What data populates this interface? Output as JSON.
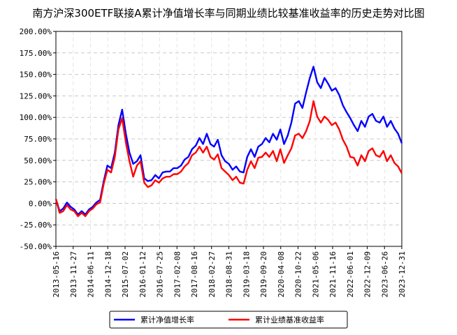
{
  "chart_data": {
    "type": "line",
    "title": "南方沪深300ETF联接A累计净值增长率与同期业绩比较基准收益率的历史走势对比图",
    "xlabel": "",
    "ylabel": "",
    "ylim": [
      -50,
      200
    ],
    "y_ticks": [
      "200.00%",
      "175.00%",
      "150.00%",
      "125.00%",
      "100.00%",
      "75.00%",
      "50.00%",
      "25.00%",
      "0.00%",
      "-25.00%",
      "-50.00%"
    ],
    "x_ticks": [
      "2013-05-16",
      "2013-11-27",
      "2014-06-11",
      "2014-12-18",
      "2015-07-02",
      "2016-01-12",
      "2016-07-25",
      "2017-02-08",
      "2017-08-16",
      "2018-02-27",
      "2018-08-31",
      "2019-03-18",
      "2019-09-20",
      "2020-04-08",
      "2020-10-22",
      "2021-05-06",
      "2021-11-16",
      "2022-06-01",
      "2022-12-09",
      "2023-06-26",
      "2023-12-31"
    ],
    "grid": true,
    "legend_position": "bottom-center",
    "series": [
      {
        "name": "累计净值增长率",
        "color": "#0000ff",
        "values": [
          5,
          -10,
          -5,
          0,
          -3,
          -8,
          -12,
          -10,
          -12,
          -8,
          -3,
          0,
          5,
          25,
          45,
          40,
          60,
          90,
          110,
          80,
          60,
          45,
          50,
          55,
          30,
          25,
          28,
          32,
          30,
          35,
          38,
          36,
          42,
          40,
          45,
          50,
          55,
          62,
          68,
          75,
          70,
          80,
          70,
          65,
          75,
          55,
          50,
          45,
          40,
          42,
          38,
          35,
          55,
          62,
          55,
          65,
          70,
          75,
          72,
          80,
          75,
          85,
          70,
          78,
          95,
          115,
          120,
          110,
          130,
          145,
          160,
          140,
          135,
          145,
          140,
          130,
          135,
          125,
          115,
          105,
          100,
          90,
          85,
          95,
          90,
          100,
          105,
          95,
          95,
          100,
          90,
          95,
          88,
          80,
          70
        ]
      },
      {
        "name": "累计业绩基准收益率",
        "color": "#ff0000",
        "values": [
          5,
          -12,
          -8,
          -3,
          -6,
          -10,
          -14,
          -12,
          -14,
          -10,
          -5,
          -2,
          2,
          22,
          40,
          35,
          55,
          85,
          100,
          70,
          50,
          30,
          45,
          48,
          25,
          18,
          22,
          26,
          25,
          28,
          32,
          30,
          35,
          33,
          38,
          42,
          48,
          55,
          60,
          65,
          60,
          65,
          55,
          50,
          58,
          40,
          38,
          32,
          28,
          30,
          25,
          22,
          40,
          48,
          42,
          52,
          55,
          58,
          55,
          60,
          50,
          62,
          48,
          55,
          65,
          78,
          82,
          75,
          85,
          95,
          120,
          100,
          95,
          100,
          98,
          90,
          95,
          85,
          75,
          65,
          55,
          52,
          45,
          55,
          50,
          60,
          65,
          55,
          55,
          60,
          50,
          55,
          48,
          42,
          35
        ]
      }
    ]
  }
}
